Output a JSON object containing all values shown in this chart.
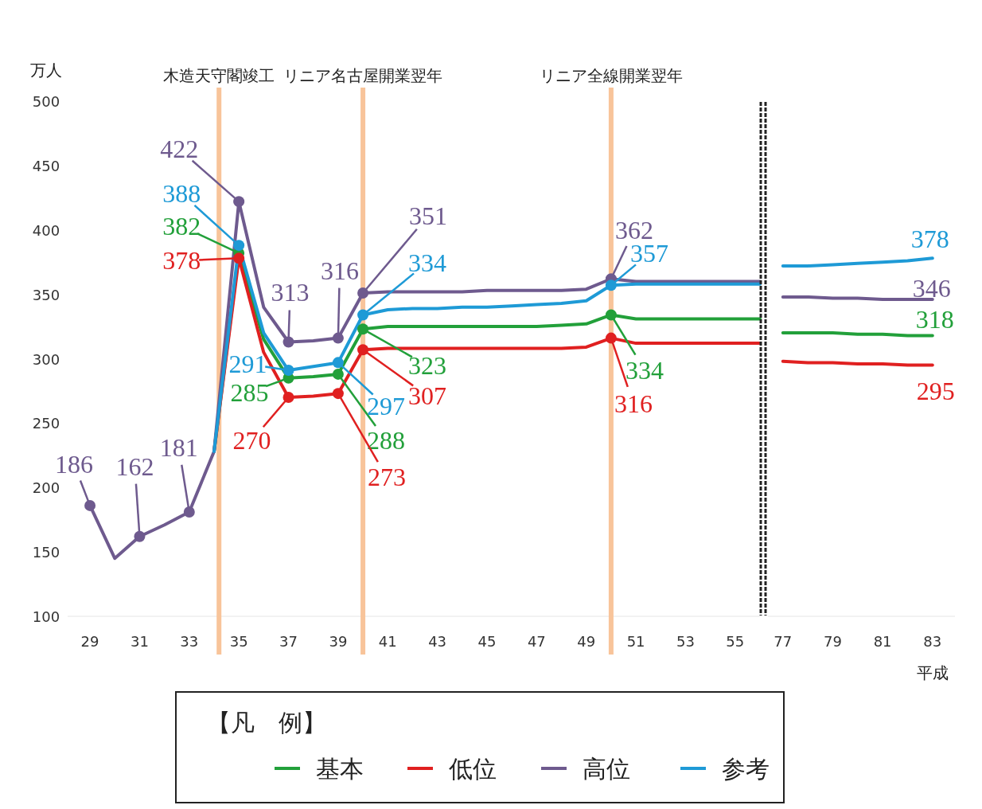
{
  "chart_data": [
    {
      "type": "line",
      "ylabel": "万人",
      "x": [
        29,
        30,
        31,
        32,
        33,
        34,
        35,
        36,
        37,
        38,
        39,
        40,
        41,
        42,
        43,
        44,
        45,
        46,
        47,
        48,
        49,
        50,
        51,
        52,
        53,
        54,
        55,
        56
      ],
      "xlim": [
        28.1,
        56.0
      ],
      "xticks": [
        29,
        31,
        33,
        35,
        37,
        39,
        41,
        43,
        45,
        47,
        49,
        51,
        53,
        55
      ],
      "ylim": [
        100,
        500
      ],
      "yticks": [
        100,
        150,
        200,
        250,
        300,
        350,
        400,
        450,
        500
      ],
      "grid": false,
      "legend": "bottom",
      "legend_title": "【凡　例】",
      "ref_lines": [
        {
          "axis": "x",
          "value": 34.2,
          "label": "木造天守閣竣工",
          "color": "#f8c49a"
        },
        {
          "axis": "x",
          "value": 40,
          "label": "リニア名古屋開業翌年",
          "color": "#f8c49a"
        },
        {
          "axis": "x",
          "value": 50,
          "label": "リニア全線開業翌年",
          "color": "#f8c49a"
        }
      ],
      "series": [
        {
          "name": "基本",
          "color": "#22a03a",
          "values": [
            null,
            null,
            null,
            null,
            null,
            228,
            382,
            315,
            285,
            286,
            288,
            323,
            325,
            325,
            325,
            325,
            325,
            325,
            325,
            326,
            327,
            334,
            331,
            331,
            331,
            331,
            331,
            331
          ],
          "value_labels": [
            null,
            null,
            null,
            null,
            null,
            null,
            "382",
            null,
            "285",
            null,
            "288",
            "323",
            null,
            null,
            null,
            null,
            null,
            null,
            null,
            null,
            null,
            "334",
            null,
            null,
            null,
            null,
            null,
            null
          ]
        },
        {
          "name": "低位",
          "color": "#e02020",
          "values": [
            null,
            null,
            null,
            null,
            null,
            228,
            378,
            305,
            270,
            271,
            273,
            307,
            308,
            308,
            308,
            308,
            308,
            308,
            308,
            308,
            309,
            316,
            312,
            312,
            312,
            312,
            312,
            312
          ],
          "value_labels": [
            null,
            null,
            null,
            null,
            null,
            null,
            "378",
            null,
            "270",
            null,
            "273",
            "307",
            null,
            null,
            null,
            null,
            null,
            null,
            null,
            null,
            null,
            "316",
            null,
            null,
            null,
            null,
            null,
            null
          ]
        },
        {
          "name": "高位",
          "color": "#6e5a8e",
          "values": [
            186,
            145,
            162,
            171,
            181,
            228,
            422,
            340,
            313,
            314,
            316,
            351,
            352,
            352,
            352,
            352,
            353,
            353,
            353,
            353,
            354,
            362,
            360,
            360,
            360,
            360,
            360,
            360
          ],
          "value_labels": [
            "186",
            null,
            "162",
            null,
            "181",
            null,
            "422",
            null,
            "313",
            null,
            "316",
            "351",
            null,
            null,
            null,
            null,
            null,
            null,
            null,
            null,
            null,
            "362",
            null,
            null,
            null,
            null,
            null,
            null
          ]
        },
        {
          "name": "参考",
          "color": "#1e9ad6",
          "values": [
            null,
            null,
            null,
            null,
            null,
            228,
            388,
            320,
            291,
            294,
            297,
            334,
            338,
            339,
            339,
            340,
            340,
            341,
            342,
            343,
            345,
            357,
            358,
            358,
            358,
            358,
            358,
            358
          ],
          "value_labels": [
            null,
            null,
            null,
            null,
            null,
            null,
            "388",
            null,
            "291",
            null,
            "297",
            "334",
            null,
            null,
            null,
            null,
            null,
            null,
            null,
            null,
            null,
            "357",
            null,
            null,
            null,
            null,
            null,
            null
          ]
        }
      ]
    },
    {
      "type": "line",
      "xlabel": "平成",
      "x": [
        77,
        78,
        79,
        80,
        81,
        82,
        83
      ],
      "xlim": [
        76.4,
        83.9
      ],
      "xticks": [
        77,
        79,
        81,
        83
      ],
      "ylim": [
        100,
        500
      ],
      "grid": false,
      "tick_labels": "x",
      "series": [
        {
          "color": "#22a03a",
          "values": [
            320,
            320,
            320,
            319,
            319,
            318,
            318
          ],
          "value_labels": [
            null,
            null,
            null,
            null,
            null,
            null,
            "318"
          ]
        },
        {
          "color": "#e02020",
          "values": [
            298,
            297,
            297,
            296,
            296,
            295,
            295
          ],
          "value_labels": [
            null,
            null,
            null,
            null,
            null,
            null,
            "295"
          ]
        },
        {
          "color": "#6e5a8e",
          "values": [
            348,
            348,
            347,
            347,
            346,
            346,
            346
          ],
          "value_labels": [
            null,
            null,
            null,
            null,
            null,
            null,
            "346"
          ]
        },
        {
          "color": "#1e9ad6",
          "values": [
            372,
            372,
            373,
            374,
            375,
            376,
            378
          ],
          "value_labels": [
            null,
            null,
            null,
            null,
            null,
            null,
            "378"
          ]
        }
      ]
    }
  ]
}
